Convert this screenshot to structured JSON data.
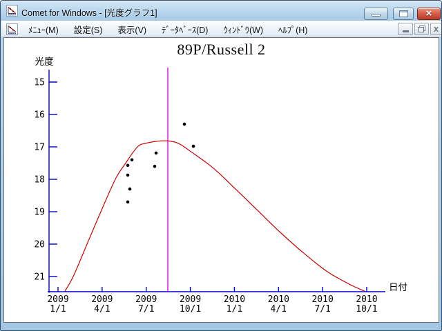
{
  "window": {
    "title": "Comet for Windows - [光度グラフ1]"
  },
  "menu": {
    "items": [
      "ﾒﾆｭｰ(M)",
      "設定(S)",
      "表示(V)",
      "ﾃﾞｰﾀﾍﾞｰｽ(D)",
      "ｳｨﾝﾄﾞｳ(W)",
      "ﾍﾙﾌﾟ(H)"
    ]
  },
  "chart_data": {
    "type": "scatter",
    "title": "89P/Russell 2",
    "ylabel": "光度",
    "xlabel": "日付",
    "y_axis_inverted": true,
    "ylim": [
      15,
      21.5
    ],
    "y_ticks": [
      15,
      16,
      17,
      18,
      19,
      20,
      21
    ],
    "x_ticks": [
      {
        "year": "2009",
        "day": "1/1"
      },
      {
        "year": "2009",
        "day": "4/1"
      },
      {
        "year": "2009",
        "day": "7/1"
      },
      {
        "year": "2009",
        "day": "10/1"
      },
      {
        "year": "2010",
        "day": "1/1"
      },
      {
        "year": "2010",
        "day": "4/1"
      },
      {
        "year": "2010",
        "day": "7/1"
      },
      {
        "year": "2010",
        "day": "10/1"
      }
    ],
    "x_unit": "xq = quarters (3 months) since 2009-01-01 tick",
    "observations": [
      {
        "date_est": "2009-05-25",
        "mag": 17.57,
        "xq": 1.582
      },
      {
        "date_est": "2009-06-03",
        "mag": 17.4,
        "xq": 1.676
      },
      {
        "date_est": "2009-05-25",
        "mag": 17.87,
        "xq": 1.582
      },
      {
        "date_est": "2009-05-30",
        "mag": 18.3,
        "xq": 1.629
      },
      {
        "date_est": "2009-05-25",
        "mag": 18.7,
        "xq": 1.582
      },
      {
        "date_est": "2009-07-23",
        "mag": 17.19,
        "xq": 2.224
      },
      {
        "date_est": "2009-07-21",
        "mag": 17.6,
        "xq": 2.192
      },
      {
        "date_est": "2009-09-20",
        "mag": 16.3,
        "xq": 2.866
      },
      {
        "date_est": "2009-10-08",
        "mag": 16.98,
        "xq": 3.069
      }
    ],
    "model_curve": [
      [
        0.157,
        21.45
      ],
      [
        0.345,
        21.0
      ],
      [
        0.658,
        20.0
      ],
      [
        0.971,
        19.0
      ],
      [
        1.3,
        18.0
      ],
      [
        1.519,
        17.53
      ],
      [
        1.801,
        17.0
      ],
      [
        1.989,
        16.89
      ],
      [
        2.224,
        16.83
      ],
      [
        2.427,
        16.81
      ],
      [
        2.646,
        16.85
      ],
      [
        2.819,
        16.96
      ],
      [
        2.975,
        17.11
      ],
      [
        3.508,
        17.64
      ],
      [
        4.025,
        18.3
      ],
      [
        4.541,
        18.98
      ],
      [
        5.074,
        19.68
      ],
      [
        5.59,
        20.3
      ],
      [
        6.107,
        20.85
      ],
      [
        6.639,
        21.26
      ],
      [
        6.952,
        21.45
      ]
    ],
    "perihelion_xq": 2.49,
    "colors": {
      "curve": "#cc0000",
      "axis": "#0000cc",
      "perihelion": "#ee00ee",
      "points": "#000000"
    }
  }
}
